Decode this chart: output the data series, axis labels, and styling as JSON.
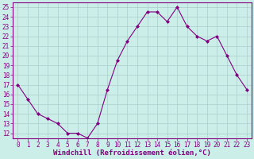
{
  "x": [
    0,
    1,
    2,
    3,
    4,
    5,
    6,
    7,
    8,
    9,
    10,
    11,
    12,
    13,
    14,
    15,
    16,
    17,
    18,
    19,
    20,
    21,
    22,
    23
  ],
  "y": [
    17.0,
    15.5,
    14.0,
    13.5,
    13.0,
    12.0,
    12.0,
    11.5,
    13.0,
    16.5,
    19.5,
    21.5,
    23.0,
    24.5,
    24.5,
    23.5,
    25.0,
    23.0,
    22.0,
    21.5,
    22.0,
    20.0,
    18.0,
    16.5
  ],
  "line_color": "#800080",
  "marker": "D",
  "marker_size": 2,
  "bg_color": "#cceee8",
  "grid_color": "#aacccc",
  "xlabel": "Windchill (Refroidissement éolien,°C)",
  "xlabel_color": "#800080",
  "ylabel_ticks": [
    12,
    13,
    14,
    15,
    16,
    17,
    18,
    19,
    20,
    21,
    22,
    23,
    24,
    25
  ],
  "xlim": [
    -0.5,
    23.5
  ],
  "ylim": [
    11.5,
    25.5
  ],
  "xticks": [
    0,
    1,
    2,
    3,
    4,
    5,
    6,
    7,
    8,
    9,
    10,
    11,
    12,
    13,
    14,
    15,
    16,
    17,
    18,
    19,
    20,
    21,
    22,
    23
  ],
  "tick_fontsize": 5.5,
  "xlabel_fontsize": 6.5
}
